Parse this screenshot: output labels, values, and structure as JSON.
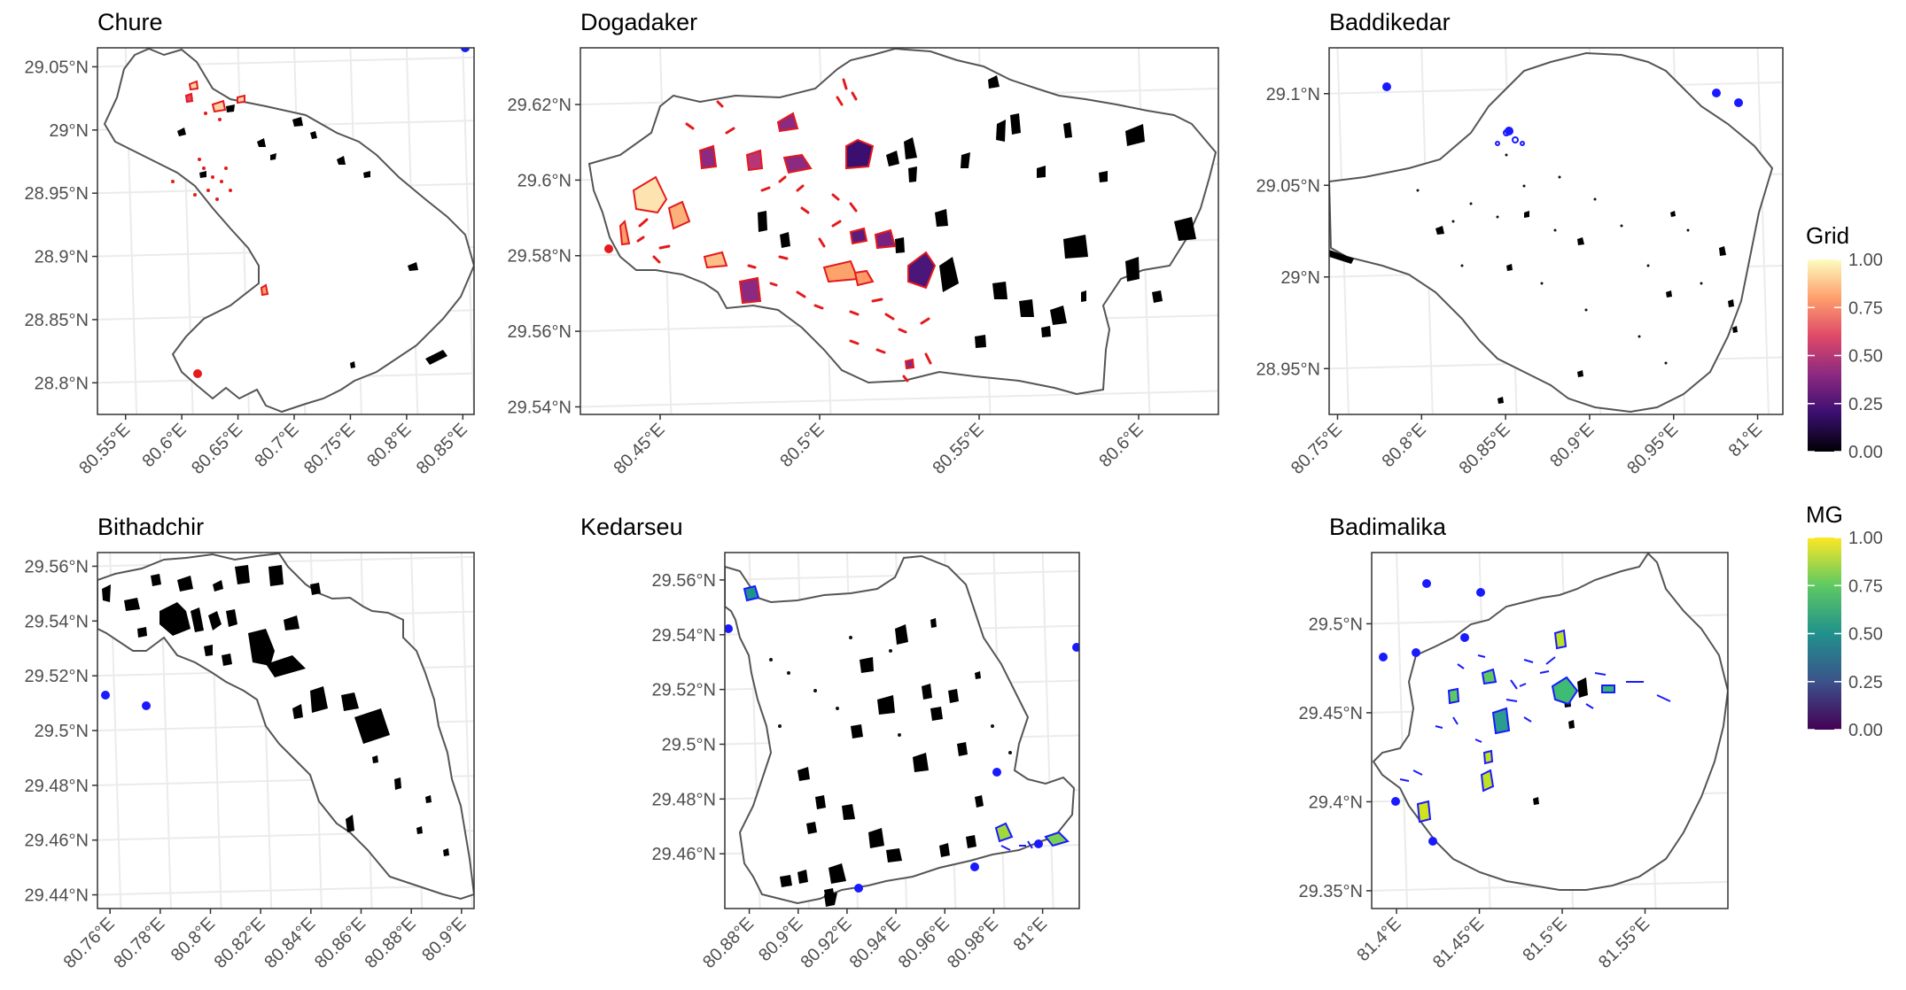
{
  "chart_data": [
    {
      "type": "map",
      "title": "Chure",
      "y_ticks": [
        "29.05°N",
        "29°N",
        "28.95°N",
        "28.9°N",
        "28.85°N",
        "28.8°N"
      ],
      "x_ticks": [
        "80.55°E",
        "80.6°E",
        "80.65°E",
        "80.7°E",
        "80.75°E",
        "80.8°E",
        "80.85°E"
      ],
      "xlim": [
        80.525,
        80.86
      ],
      "ylim": [
        28.775,
        29.065
      ],
      "x_tick_values": [
        80.55,
        80.6,
        80.65,
        80.7,
        80.75,
        80.8,
        80.85
      ],
      "y_tick_values": [
        29.05,
        29.0,
        28.95,
        28.9,
        28.85,
        28.8
      ],
      "layer": "Grid"
    },
    {
      "type": "map",
      "title": "Dogadaker",
      "y_ticks": [
        "29.62°N",
        "29.6°N",
        "29.58°N",
        "29.56°N",
        "29.54°N"
      ],
      "x_ticks": [
        "80.45°E",
        "80.5°E",
        "80.55°E",
        "80.6°E"
      ],
      "xlim": [
        80.425,
        80.625
      ],
      "ylim": [
        29.538,
        29.635
      ],
      "x_tick_values": [
        80.45,
        80.5,
        80.55,
        80.6
      ],
      "y_tick_values": [
        29.62,
        29.6,
        29.58,
        29.56,
        29.54
      ],
      "layer": "Grid"
    },
    {
      "type": "map",
      "title": "Baddikedar",
      "y_ticks": [
        "29.1°N",
        "29.05°N",
        "29°N",
        "28.95°N"
      ],
      "x_ticks": [
        "80.75°E",
        "80.8°E",
        "80.85°E",
        "80.9°E",
        "80.95°E",
        "81°E"
      ],
      "xlim": [
        80.745,
        81.015
      ],
      "ylim": [
        28.925,
        29.125
      ],
      "x_tick_values": [
        80.75,
        80.8,
        80.85,
        80.9,
        80.95,
        81.0
      ],
      "y_tick_values": [
        29.1,
        29.05,
        29.0,
        28.95
      ],
      "layer": "MG"
    },
    {
      "type": "map",
      "title": "Bithadchir",
      "y_ticks": [
        "29.56°N",
        "29.54°N",
        "29.52°N",
        "29.5°N",
        "29.48°N",
        "29.46°N",
        "29.44°N"
      ],
      "x_ticks": [
        "80.76°E",
        "80.78°E",
        "80.8°E",
        "80.82°E",
        "80.84°E",
        "80.86°E",
        "80.88°E",
        "80.9°E"
      ],
      "xlim": [
        80.755,
        80.905
      ],
      "ylim": [
        29.435,
        29.565
      ],
      "x_tick_values": [
        80.76,
        80.78,
        80.8,
        80.82,
        80.84,
        80.86,
        80.88,
        80.9
      ],
      "y_tick_values": [
        29.56,
        29.54,
        29.52,
        29.5,
        29.48,
        29.46,
        29.44
      ],
      "layer": "none"
    },
    {
      "type": "map",
      "title": "Kedarseu",
      "y_ticks": [
        "29.56°N",
        "29.54°N",
        "29.52°N",
        "29.5°N",
        "29.48°N",
        "29.46°N"
      ],
      "x_ticks": [
        "80.88°E",
        "80.9°E",
        "80.92°E",
        "80.94°E",
        "80.96°E",
        "80.98°E",
        "81°E"
      ],
      "xlim": [
        80.87,
        81.015
      ],
      "ylim": [
        29.44,
        29.57
      ],
      "x_tick_values": [
        80.88,
        80.9,
        80.92,
        80.94,
        80.96,
        80.98,
        81.0
      ],
      "y_tick_values": [
        29.56,
        29.54,
        29.52,
        29.5,
        29.48,
        29.46
      ],
      "layer": "MG"
    },
    {
      "type": "map",
      "title": "Badimalika",
      "y_ticks": [
        "29.5°N",
        "29.45°N",
        "29.4°N",
        "29.35°N"
      ],
      "x_ticks": [
        "81.4°E",
        "81.45°E",
        "81.5°E",
        "81.55°E"
      ],
      "xlim": [
        81.385,
        81.6
      ],
      "ylim": [
        29.34,
        29.54
      ],
      "x_tick_values": [
        81.4,
        81.45,
        81.5,
        81.55
      ],
      "y_tick_values": [
        29.5,
        29.45,
        29.4,
        29.35
      ],
      "layer": "MG"
    }
  ],
  "legends": [
    {
      "title": "Grid",
      "ticks": [
        "1.00",
        "0.75",
        "0.50",
        "0.25",
        "0.00"
      ],
      "colormap": "magma",
      "colors": [
        "#000004",
        "#3b0f70",
        "#8c2981",
        "#de4968",
        "#fe9f6d",
        "#fcfdbf"
      ]
    },
    {
      "title": "MG",
      "ticks": [
        "1.00",
        "0.75",
        "0.50",
        "0.25",
        "0.00"
      ],
      "colormap": "viridis",
      "colors": [
        "#440154",
        "#3b528b",
        "#21918c",
        "#5ec962",
        "#fde725"
      ]
    }
  ],
  "colors": {
    "boundary": "#555555",
    "grid": "#ebebeb",
    "panel_border": "#333333",
    "grid_outline": "#e41a1c",
    "mg_outline": "#1a1aff",
    "points_red": "#e41a1c",
    "points_blue": "#1a1aff",
    "black_patches": "#000000"
  }
}
